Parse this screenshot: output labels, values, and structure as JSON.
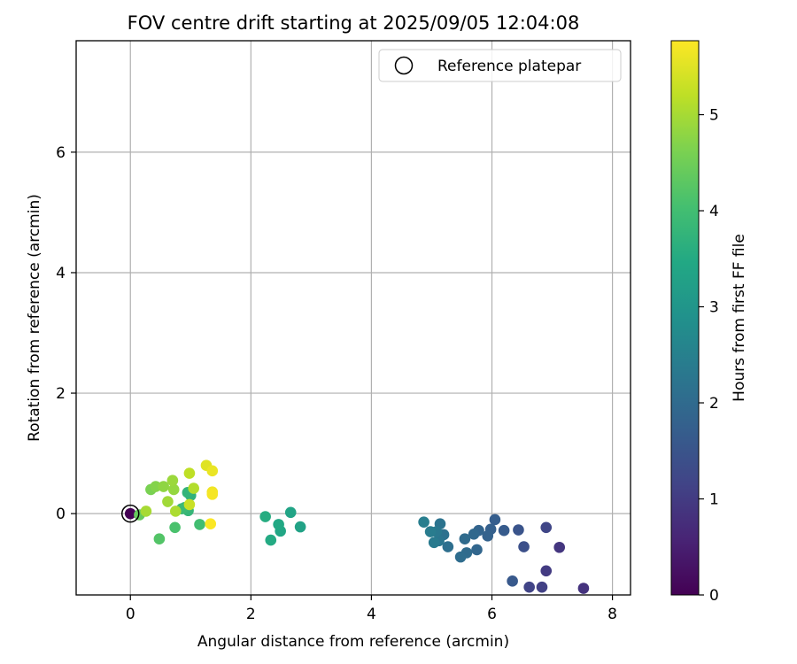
{
  "chart_data": {
    "type": "scatter",
    "title": "FOV centre drift starting at 2025/09/05 12:04:08",
    "xlabel": "Angular distance from reference (arcmin)",
    "ylabel": "Rotation from reference (arcmin)",
    "xlim": [
      -0.9,
      8.3
    ],
    "ylim": [
      -1.35,
      7.85
    ],
    "x_ticks": [
      0,
      2,
      4,
      6,
      8
    ],
    "y_ticks": [
      0,
      2,
      4,
      6
    ],
    "grid": true,
    "legend": {
      "placement": "top-right",
      "entries": [
        "Reference platepar"
      ]
    },
    "colorbar": {
      "label": "Hours from first FF file",
      "min": 0,
      "max": 5.77,
      "ticks": [
        0,
        1,
        2,
        3,
        4,
        5
      ],
      "colormap": "viridis"
    },
    "reference_point": {
      "x": 0,
      "y": 0
    },
    "points": [
      {
        "x": 0.0,
        "y": 0.0,
        "h": 0.0
      },
      {
        "x": 7.52,
        "y": -1.24,
        "h": 0.85
      },
      {
        "x": 7.12,
        "y": -0.56,
        "h": 0.9
      },
      {
        "x": 6.9,
        "y": -0.95,
        "h": 1.0
      },
      {
        "x": 6.9,
        "y": -0.23,
        "h": 1.2
      },
      {
        "x": 6.83,
        "y": -1.22,
        "h": 1.1
      },
      {
        "x": 6.62,
        "y": -1.22,
        "h": 1.15
      },
      {
        "x": 6.53,
        "y": -0.55,
        "h": 1.4
      },
      {
        "x": 6.44,
        "y": -0.27,
        "h": 1.5
      },
      {
        "x": 6.34,
        "y": -1.12,
        "h": 1.6
      },
      {
        "x": 6.2,
        "y": -0.28,
        "h": 1.65
      },
      {
        "x": 6.05,
        "y": -0.1,
        "h": 1.7
      },
      {
        "x": 5.98,
        "y": -0.26,
        "h": 1.75
      },
      {
        "x": 5.93,
        "y": -0.37,
        "h": 1.8
      },
      {
        "x": 5.78,
        "y": -0.28,
        "h": 1.85
      },
      {
        "x": 5.75,
        "y": -0.6,
        "h": 1.9
      },
      {
        "x": 5.7,
        "y": -0.34,
        "h": 1.95
      },
      {
        "x": 5.58,
        "y": -0.65,
        "h": 2.0
      },
      {
        "x": 5.55,
        "y": -0.42,
        "h": 2.0
      },
      {
        "x": 5.48,
        "y": -0.72,
        "h": 2.05
      },
      {
        "x": 5.27,
        "y": -0.55,
        "h": 2.1
      },
      {
        "x": 5.2,
        "y": -0.35,
        "h": 2.15
      },
      {
        "x": 5.14,
        "y": -0.17,
        "h": 2.2
      },
      {
        "x": 5.12,
        "y": -0.45,
        "h": 2.25
      },
      {
        "x": 5.08,
        "y": -0.3,
        "h": 2.3
      },
      {
        "x": 5.04,
        "y": -0.48,
        "h": 2.35
      },
      {
        "x": 4.98,
        "y": -0.3,
        "h": 2.4
      },
      {
        "x": 4.87,
        "y": -0.14,
        "h": 2.45
      },
      {
        "x": 2.82,
        "y": -0.22,
        "h": 3.3
      },
      {
        "x": 2.66,
        "y": 0.02,
        "h": 3.35
      },
      {
        "x": 2.49,
        "y": -0.29,
        "h": 3.4
      },
      {
        "x": 2.46,
        "y": -0.18,
        "h": 3.45
      },
      {
        "x": 2.33,
        "y": -0.44,
        "h": 3.5
      },
      {
        "x": 2.24,
        "y": -0.05,
        "h": 3.55
      },
      {
        "x": 1.0,
        "y": 0.3,
        "h": 3.7
      },
      {
        "x": 0.95,
        "y": 0.35,
        "h": 3.75
      },
      {
        "x": 0.96,
        "y": 0.05,
        "h": 3.8
      },
      {
        "x": 0.9,
        "y": 0.1,
        "h": 3.85
      },
      {
        "x": 0.85,
        "y": 0.08,
        "h": 3.9
      },
      {
        "x": 1.15,
        "y": -0.18,
        "h": 4.0
      },
      {
        "x": 0.74,
        "y": -0.23,
        "h": 4.1
      },
      {
        "x": 0.48,
        "y": -0.42,
        "h": 4.2
      },
      {
        "x": 0.15,
        "y": -0.02,
        "h": 4.4
      },
      {
        "x": 0.34,
        "y": 0.4,
        "h": 4.6
      },
      {
        "x": 0.42,
        "y": 0.45,
        "h": 4.7
      },
      {
        "x": 0.55,
        "y": 0.45,
        "h": 4.8
      },
      {
        "x": 0.72,
        "y": 0.4,
        "h": 4.85
      },
      {
        "x": 0.7,
        "y": 0.55,
        "h": 4.9
      },
      {
        "x": 0.62,
        "y": 0.2,
        "h": 4.95
      },
      {
        "x": 0.26,
        "y": 0.04,
        "h": 5.0
      },
      {
        "x": 0.75,
        "y": 0.04,
        "h": 5.05
      },
      {
        "x": 1.05,
        "y": 0.42,
        "h": 5.1
      },
      {
        "x": 0.98,
        "y": 0.67,
        "h": 5.2
      },
      {
        "x": 0.98,
        "y": 0.15,
        "h": 5.3
      },
      {
        "x": 1.26,
        "y": 0.8,
        "h": 5.5
      },
      {
        "x": 1.36,
        "y": 0.71,
        "h": 5.6
      },
      {
        "x": 1.36,
        "y": 0.36,
        "h": 5.65
      },
      {
        "x": 1.36,
        "y": 0.32,
        "h": 5.7
      },
      {
        "x": 1.33,
        "y": -0.17,
        "h": 5.75
      }
    ]
  }
}
